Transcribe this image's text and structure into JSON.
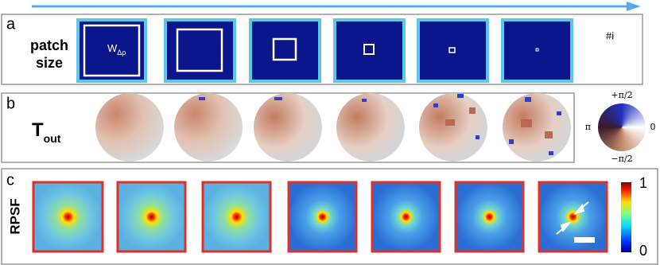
{
  "progress_label": "#i",
  "panel_a": {
    "label": "a",
    "title_lines": [
      "patch",
      "size"
    ],
    "patch_symbol": {
      "text": "W",
      "subscript": "Δρ"
    }
  },
  "panel_b": {
    "label": "b",
    "title": {
      "text": "T",
      "subscript": "out"
    },
    "phase_labels": {
      "top": "+π/2",
      "left": "π",
      "right": "0",
      "bottom": "−π/2"
    }
  },
  "panel_c": {
    "label": "c",
    "title": "RPSF",
    "colorbar_labels": {
      "top": "1",
      "bottom": "0"
    }
  }
}
